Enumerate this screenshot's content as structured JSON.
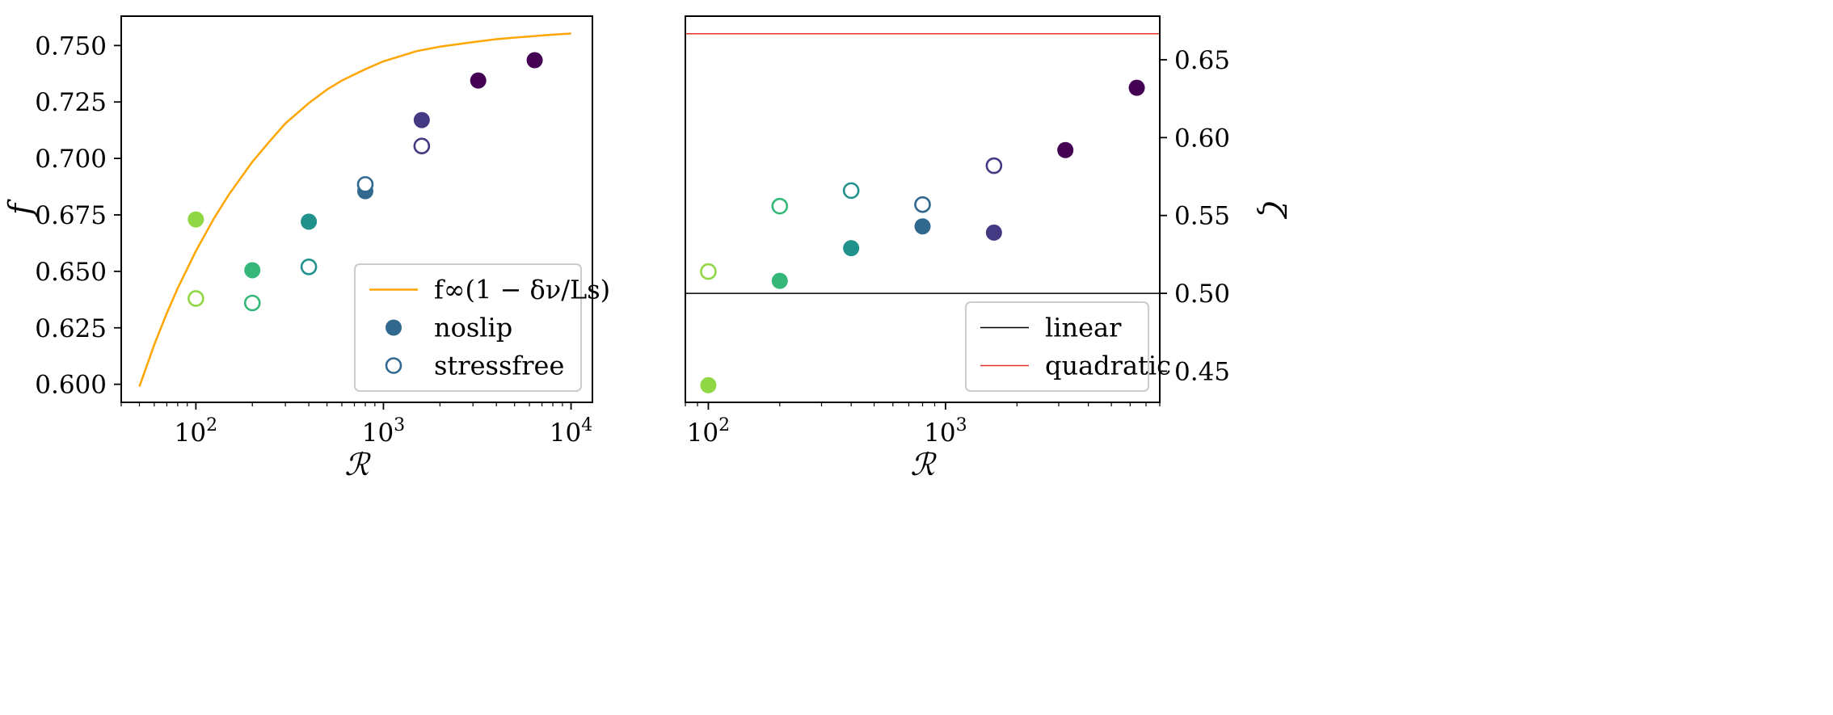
{
  "chart_data": [
    {
      "type": "scatter",
      "title": "",
      "xlabel": "ℛ",
      "ylabel": "f",
      "xscale": "log",
      "xlim": [
        40,
        13000
      ],
      "ylim": [
        0.592,
        0.763
      ],
      "x_ticks": [
        {
          "value": 100,
          "label": "10",
          "exp": "2"
        },
        {
          "value": 1000,
          "label": "10",
          "exp": "3"
        },
        {
          "value": 10000,
          "label": "10",
          "exp": "4"
        }
      ],
      "y_ticks": [
        0.6,
        0.625,
        0.65,
        0.675,
        0.7,
        0.725,
        0.75
      ],
      "y_tick_labels": [
        "0.600",
        "0.625",
        "0.650",
        "0.675",
        "0.700",
        "0.725",
        "0.750"
      ],
      "grid": false,
      "legend_position": "lower-right",
      "legend": [
        {
          "label": "f∞(1 − δν/Ls)",
          "marker": "line",
          "color": "#FFA500"
        },
        {
          "label": "noslip",
          "marker": "filled-circle",
          "color": "#31688E"
        },
        {
          "label": "stressfree",
          "marker": "open-circle",
          "color": "#31688E"
        }
      ],
      "curve": {
        "name": "f∞(1 − δν/Ls)",
        "color": "#FFA500",
        "x": [
          50,
          60,
          70,
          80,
          100,
          125,
          150,
          200,
          250,
          300,
          400,
          500,
          600,
          800,
          1000,
          1500,
          2000,
          3000,
          4000,
          5000,
          6000,
          8000,
          10000
        ],
        "y": [
          0.599,
          0.6175,
          0.6315,
          0.6425,
          0.659,
          0.6735,
          0.684,
          0.6985,
          0.708,
          0.7155,
          0.7245,
          0.7305,
          0.7345,
          0.7395,
          0.743,
          0.7475,
          0.7495,
          0.7515,
          0.7528,
          0.7535,
          0.754,
          0.7548,
          0.7553
        ]
      },
      "series": [
        {
          "name": "noslip",
          "marker": "filled",
          "x": [
            100,
            200,
            400,
            800,
            1600,
            3200,
            6400
          ],
          "y": [
            0.673,
            0.6505,
            0.672,
            0.6855,
            0.717,
            0.7345,
            0.7435
          ],
          "colors": [
            "#8FD744",
            "#35B779",
            "#21918C",
            "#31688E",
            "#443A83",
            "#440154",
            "#440154"
          ]
        },
        {
          "name": "stressfree",
          "marker": "open",
          "x": [
            100,
            200,
            400,
            800,
            1600
          ],
          "y": [
            0.638,
            0.636,
            0.652,
            0.6885,
            0.7055
          ],
          "colors": [
            "#8FD744",
            "#35B779",
            "#21918C",
            "#31688E",
            "#443A83"
          ]
        }
      ]
    },
    {
      "type": "scatter",
      "title": "",
      "xlabel": "ℛ",
      "ylabel": "ζ",
      "xscale": "log",
      "xlim": [
        80,
        8000
      ],
      "ylim": [
        0.43,
        0.678
      ],
      "y_axis_side": "right",
      "x_ticks": [
        {
          "value": 100,
          "label": "10",
          "exp": "2"
        },
        {
          "value": 1000,
          "label": "10",
          "exp": "3"
        }
      ],
      "y_ticks": [
        0.45,
        0.5,
        0.55,
        0.6,
        0.65
      ],
      "y_tick_labels": [
        "0.45",
        "0.50",
        "0.55",
        "0.60",
        "0.65"
      ],
      "grid": false,
      "legend_position": "lower-right",
      "legend": [
        {
          "label": "linear",
          "marker": "line",
          "color": "#000000"
        },
        {
          "label": "quadratic",
          "marker": "line",
          "color": "#E8312A"
        }
      ],
      "hlines": [
        {
          "name": "linear",
          "y": 0.5,
          "color": "#000000"
        },
        {
          "name": "quadratic",
          "y": 0.6667,
          "color": "#E8312A"
        }
      ],
      "series": [
        {
          "name": "noslip",
          "marker": "filled",
          "x": [
            100,
            200,
            400,
            800,
            1600,
            3200,
            6400
          ],
          "y": [
            0.441,
            0.508,
            0.529,
            0.543,
            0.539,
            0.592,
            0.632
          ],
          "colors": [
            "#8FD744",
            "#35B779",
            "#21918C",
            "#31688E",
            "#443A83",
            "#440154",
            "#440154"
          ]
        },
        {
          "name": "stressfree",
          "marker": "open",
          "x": [
            100,
            200,
            400,
            800,
            1600
          ],
          "y": [
            0.514,
            0.556,
            0.566,
            0.557,
            0.582
          ],
          "colors": [
            "#8FD744",
            "#35B779",
            "#21918C",
            "#31688E",
            "#443A83"
          ]
        }
      ]
    }
  ]
}
